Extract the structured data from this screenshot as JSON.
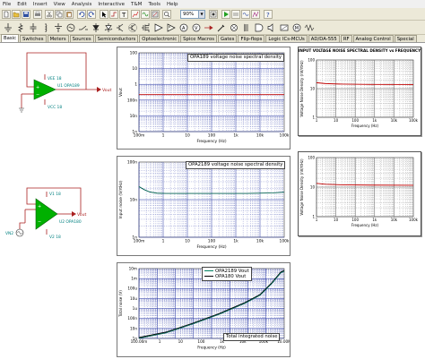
{
  "menu": [
    "File",
    "Edit",
    "Insert",
    "View",
    "Analysis",
    "Interactive",
    "T&M",
    "Tools",
    "Help"
  ],
  "toolbar": {
    "zoom_value": "90%"
  },
  "tabs": [
    "Basic",
    "Switches",
    "Meters",
    "Sources",
    "Semiconductors",
    "Optoelectronic",
    "Spice Macros",
    "Gates",
    "Flip-flops",
    "Logic ICs-MCUs",
    "AD/DA-555",
    "RF",
    "Analog Control",
    "Special"
  ],
  "circuit1": {
    "vee": "VEE 18",
    "vcc": "VCC 18",
    "opamp": "U1 OPA189",
    "output": "Vout"
  },
  "circuit2": {
    "v1": "V1 18",
    "v2": "V2 18",
    "opamp": "U2 OPA180",
    "output": "Vout",
    "source": "VN2"
  },
  "graph1": {
    "title": "OPA189 voltage noise spectral density",
    "ylabel": "Vout",
    "xlabel": "Frequency (Hz)",
    "y_ticks": [
      "100",
      "10",
      "1",
      "100n",
      "10n",
      "1n"
    ],
    "x_ticks": [
      "100m",
      "1",
      "10",
      "100",
      "1k",
      "10k",
      "100k"
    ]
  },
  "graph2": {
    "title": "OPA2189 voltage noise spectral density",
    "ylabel": "Input noise (V/rtHz)",
    "xlabel": "Frequency (Hz)",
    "y_ticks": [
      "100n",
      "10n",
      "1n"
    ],
    "x_ticks": [
      "100m",
      "1",
      "10",
      "100",
      "1k",
      "10k",
      "100k"
    ]
  },
  "graph3": {
    "legend": [
      "OPA2189 Vout",
      "OPA180 Vout"
    ],
    "label": "Total integrated noise",
    "ylabel": "Total noise (V)",
    "xlabel": "Frequency (Hz)",
    "y_ticks": [
      "10m",
      "1m",
      "100u",
      "10u",
      "1u",
      "100n",
      "10n",
      "1n"
    ],
    "x_ticks": [
      "100.00m",
      "1",
      "10",
      "100",
      "1k",
      "10k",
      "100k",
      "10.00M"
    ]
  },
  "ref1": {
    "title": "INPUT VOLTAGE NOISE SPECTRAL DENSITY vs FREQUENCY",
    "ylabel": "Voltage Noise Density (nV/rtHz)",
    "xlabel": "Frequency (Hz)",
    "y_ticks": [
      "100",
      "10",
      "1"
    ],
    "x_ticks": [
      "1",
      "10",
      "100",
      "1k",
      "10k",
      "100k"
    ]
  },
  "ref2": {
    "ylabel": "Voltage Noise Density (nV/rtHz)",
    "xlabel": "Frequency (Hz)",
    "y_ticks": [
      "100",
      "10",
      "1"
    ],
    "x_ticks": [
      "1",
      "10",
      "100",
      "1k",
      "10k",
      "100k"
    ]
  },
  "colors": {
    "curve_red": "#c00000",
    "curve_green": "#006050",
    "curve_black": "#000000",
    "grid_blue": "#2030a0",
    "wire_red": "#aa2020",
    "opamp_green": "#00a000"
  }
}
